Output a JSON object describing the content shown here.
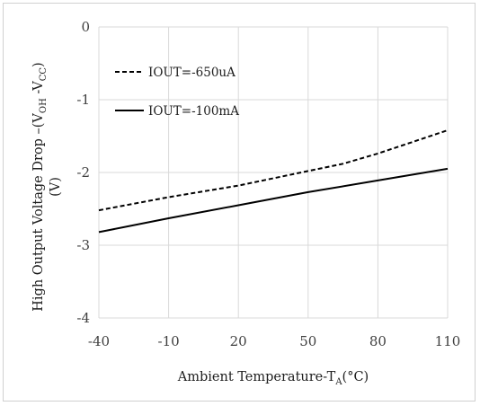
{
  "chart_data": {
    "type": "line",
    "xlabel": {
      "main": "Ambient Temperature-T",
      "sub": "A",
      "tail": "(°C)"
    },
    "ylabel": {
      "line1": [
        {
          "text": "High Output Voltage Drop –(V",
          "sub": false
        },
        {
          "text": "OH",
          "sub": true
        },
        {
          "text": " -V",
          "sub": false
        },
        {
          "text": "CC",
          "sub": true
        },
        {
          "text": ")",
          "sub": false
        }
      ],
      "line2": "(V)"
    },
    "x_ticks": [
      "-40",
      "-10",
      "20",
      "50",
      "80",
      "110"
    ],
    "y_ticks": [
      "0",
      "-1",
      "-2",
      "-3",
      "-4"
    ],
    "xlim": [
      -40,
      110
    ],
    "ylim": [
      -4,
      0
    ],
    "grid": true,
    "legend_position": "top-left",
    "series": [
      {
        "name": "IOUT=-650uA",
        "style": "dashed",
        "color": "#000000",
        "x": [
          -40,
          -10,
          20,
          50,
          65,
          80,
          95,
          110
        ],
        "y": [
          -2.52,
          -2.34,
          -2.18,
          -1.98,
          -1.88,
          -1.74,
          -1.58,
          -1.42
        ]
      },
      {
        "name": "IOUT=-100mA",
        "style": "solid",
        "color": "#000000",
        "x": [
          -40,
          -10,
          20,
          50,
          80,
          110
        ],
        "y": [
          -2.82,
          -2.63,
          -2.45,
          -2.27,
          -2.11,
          -1.95
        ]
      }
    ]
  },
  "colors": {
    "grid": "#d9d9d9",
    "tick_text": "#404040",
    "axis_text": "#202020",
    "frame": "#d0d0d0"
  }
}
